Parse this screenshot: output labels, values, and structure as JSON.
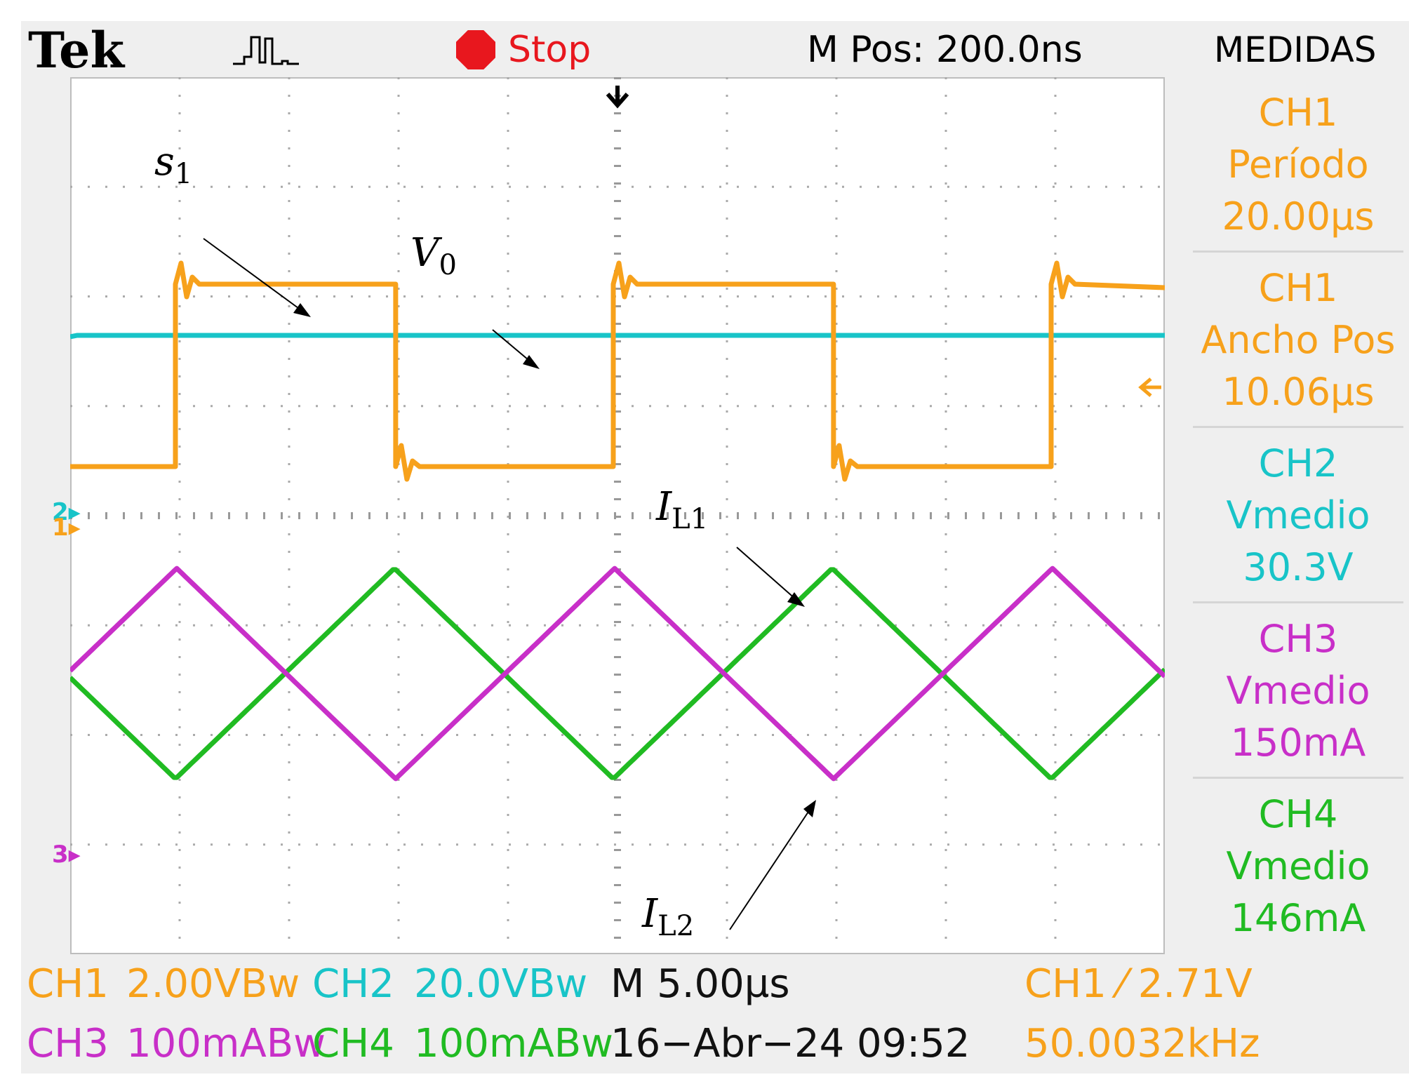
{
  "header": {
    "brand": "Tek",
    "acquire_icon": "pulse-icon",
    "run_state": "Stop",
    "m_pos": "M Pos: 200.0ns",
    "panel_title": "MEDIDAS"
  },
  "measurements": [
    {
      "channel": "CH1",
      "type": "Período",
      "value": "20.00µs",
      "color": "#f7a11b"
    },
    {
      "channel": "CH1",
      "type": "Ancho Pos",
      "value": "10.06µs",
      "color": "#f7a11b"
    },
    {
      "channel": "CH2",
      "type": "Vmedio",
      "value": "30.3V",
      "color": "#18c4c8"
    },
    {
      "channel": "CH3",
      "type": "Vmedio",
      "value": "150mA",
      "color": "#c82fc8"
    },
    {
      "channel": "CH4",
      "type": "Vmedio",
      "value": "146mA",
      "color": "#20bb22"
    }
  ],
  "footer": {
    "ch1": "CH1",
    "ch1_scale": "2.00VBw",
    "ch2": "CH2",
    "ch2_scale": "20.0VBw",
    "timebase": "M 5.00µs",
    "trigger": "CH1 ⁄ 2.71V",
    "ch3": "CH3",
    "ch3_scale": "100mABw",
    "ch4": "CH4",
    "ch4_scale": "100mABw",
    "datetime": "16−Abr−24 09:52",
    "frequency": "50.0032kHz"
  },
  "annotations": {
    "s1": {
      "base": "s",
      "sub": "1"
    },
    "v0": {
      "base": "V",
      "sub": "0"
    },
    "il1": {
      "base": "I",
      "sub": "L1"
    },
    "il2": {
      "base": "I",
      "sub": "L2"
    }
  },
  "markers": {
    "ch12": "2",
    "ch1": "1",
    "ch34": "3"
  },
  "colors": {
    "ch1": "#f7a11b",
    "ch2": "#18c4c8",
    "ch3": "#c82fc8",
    "ch4": "#20bb22"
  },
  "waveform": {
    "period_us": 20.0,
    "pos_width_us": 10.06,
    "time_per_div_us": 5.0,
    "ch2_level": 30.3
  }
}
